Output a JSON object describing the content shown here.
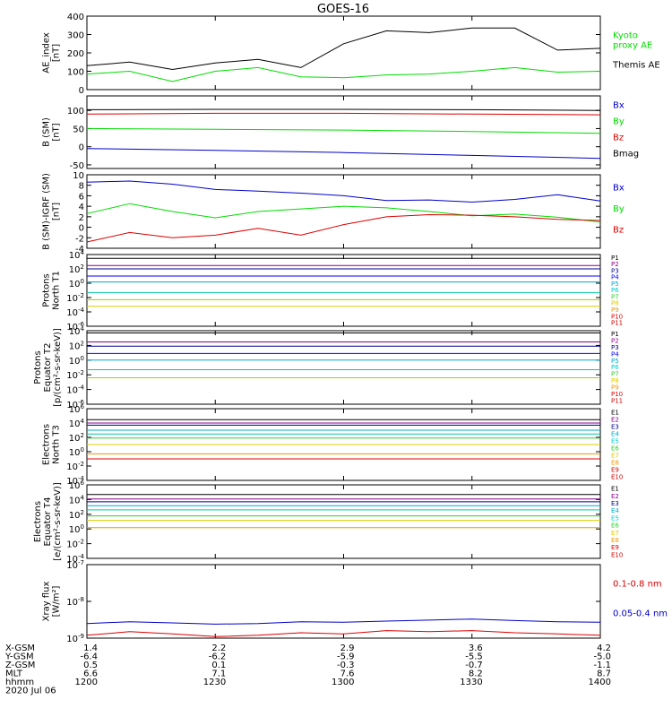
{
  "title": "GOES-16",
  "colors": {
    "black": "#000000",
    "blue": "#0000cc",
    "green": "#00dd00",
    "red": "#dd0000",
    "purple": "#880088",
    "navy": "#000088",
    "blue2": "#0000ff",
    "cyan": "#00aacc",
    "cyan2": "#00cccc",
    "teal": "#00cc99",
    "green2": "#33cc33",
    "lime": "#aacc00",
    "yellow": "#ddcc00",
    "orange": "#ee9900",
    "orange2": "#ee6600",
    "red2": "#cc0000"
  },
  "time_axis": {
    "start": "1200",
    "end": "1400",
    "row_labels": [
      "X-GSM",
      "Y-GSM",
      "Z-GSM",
      "MLT",
      "hhmm",
      "2020 Jul 06"
    ],
    "columns": [
      [
        "1.4",
        "-6.4",
        "0.5",
        "6.6",
        "1200"
      ],
      [
        "2.2",
        "-6.2",
        "0.1",
        "7.1",
        "1230"
      ],
      [
        "2.9",
        "-5.9",
        "-0.3",
        "7.6",
        "1300"
      ],
      [
        "3.6",
        "-5.5",
        "-0.7",
        "8.2",
        "1330"
      ],
      [
        "4.2",
        "-5.0",
        "-1.1",
        "8.7",
        "1400"
      ]
    ]
  },
  "chart_data": [
    {
      "type": "line",
      "ylabel": [
        "AE_index",
        "[nT]"
      ],
      "ylim": [
        0,
        400
      ],
      "yticks": [
        "0",
        "100",
        "200",
        "300",
        "400"
      ],
      "x": [
        "1200",
        "1210",
        "1220",
        "1230",
        "1240",
        "1250",
        "1300",
        "1310",
        "1320",
        "1330",
        "1340",
        "1350",
        "1400"
      ],
      "series": [
        {
          "name": "Themis AE",
          "color": "black",
          "values": [
            130,
            150,
            110,
            145,
            165,
            120,
            250,
            320,
            310,
            335,
            335,
            215,
            225
          ]
        },
        {
          "name": "Kyoto proxy AE",
          "color": "green",
          "values": [
            85,
            100,
            45,
            100,
            120,
            70,
            65,
            80,
            85,
            100,
            120,
            95,
            100
          ]
        }
      ],
      "legend": [
        {
          "text": "Kyoto\nproxy AE",
          "color": "green"
        },
        {
          "text": "Themis AE",
          "color": "black"
        }
      ]
    },
    {
      "type": "line",
      "ylabel": [
        "B (SM)",
        "[nT]"
      ],
      "ylim": [
        -60,
        140
      ],
      "yticks": [
        "-50",
        "0",
        "50",
        "100"
      ],
      "x": [
        "1200",
        "1230",
        "1300",
        "1330",
        "1400"
      ],
      "series": [
        {
          "name": "Bmag",
          "color": "black",
          "values": [
            102,
            103,
            103,
            102,
            100
          ]
        },
        {
          "name": "Bz",
          "color": "red",
          "values": [
            90,
            92,
            92,
            90,
            88
          ]
        },
        {
          "name": "By",
          "color": "green",
          "values": [
            50,
            48,
            46,
            42,
            37
          ]
        },
        {
          "name": "Bx",
          "color": "blue",
          "values": [
            -5,
            -10,
            -16,
            -24,
            -32
          ]
        }
      ],
      "legend": [
        {
          "text": "Bx",
          "color": "blue"
        },
        {
          "text": "By",
          "color": "green"
        },
        {
          "text": "Bz",
          "color": "red"
        },
        {
          "text": "Bmag",
          "color": "black"
        }
      ]
    },
    {
      "type": "line",
      "ylabel": [
        "B (SM)-IGRF (SM)",
        "[nT]"
      ],
      "ylim": [
        -4,
        10
      ],
      "yticks": [
        "-4",
        "-2",
        "0",
        "2",
        "4",
        "6",
        "8",
        "10"
      ],
      "x": [
        "1200",
        "1210",
        "1220",
        "1230",
        "1240",
        "1250",
        "1300",
        "1310",
        "1320",
        "1330",
        "1340",
        "1350",
        "1400"
      ],
      "series": [
        {
          "name": "Bx",
          "color": "blue",
          "values": [
            8.6,
            8.8,
            8.2,
            7.2,
            6.9,
            6.5,
            6.0,
            5.1,
            5.2,
            4.8,
            5.3,
            6.2,
            5.0
          ]
        },
        {
          "name": "By",
          "color": "green",
          "values": [
            2.6,
            4.5,
            3.0,
            1.8,
            3.0,
            3.5,
            4.0,
            3.7,
            3.0,
            2.2,
            2.5,
            1.9,
            1.0
          ]
        },
        {
          "name": "Bz",
          "color": "red",
          "values": [
            -2.8,
            -1.0,
            -2.0,
            -1.5,
            -0.2,
            -1.5,
            0.5,
            2.0,
            2.4,
            2.3,
            2.0,
            1.5,
            1.3
          ]
        }
      ],
      "legend": [
        {
          "text": "Bx",
          "color": "blue"
        },
        {
          "text": "By",
          "color": "green"
        },
        {
          "text": "Bz",
          "color": "red"
        }
      ]
    },
    {
      "type": "line",
      "log": true,
      "ylabel": [
        "Protons",
        "North T1"
      ],
      "ylim_exp": [
        -6,
        4
      ],
      "ytick_labels": [
        "10^-6",
        "10^-4",
        "10^-2",
        "10^0",
        "10^2",
        "10^4"
      ],
      "series": [
        {
          "name": "P1",
          "color": "black",
          "values": [
            3000,
            3000,
            3000
          ]
        },
        {
          "name": "P2",
          "color": "purple",
          "values": [
            300,
            300,
            300
          ]
        },
        {
          "name": "P3",
          "color": "navy",
          "values": [
            100,
            100,
            100
          ]
        },
        {
          "name": "P4",
          "color": "blue2",
          "values": [
            10,
            10,
            10
          ]
        },
        {
          "name": "P5",
          "color": "cyan",
          "values": [
            1.5,
            1.5,
            1.5
          ]
        },
        {
          "name": "P6",
          "color": "teal",
          "values": [
            0.05,
            0.05,
            0.05
          ]
        },
        {
          "name": "P7",
          "color": "lime",
          "values": [
            0.005,
            0.005,
            0.005
          ]
        },
        {
          "name": "P8",
          "color": "yellow",
          "values": [
            0.0006,
            0.0006,
            0.0006
          ]
        }
      ],
      "legend": [
        {
          "text": "P1",
          "color": "black"
        },
        {
          "text": "P2",
          "color": "purple"
        },
        {
          "text": "P3",
          "color": "navy"
        },
        {
          "text": "P4",
          "color": "blue2"
        },
        {
          "text": "P5",
          "color": "cyan"
        },
        {
          "text": "P6",
          "color": "cyan2"
        },
        {
          "text": "P7",
          "color": "green2"
        },
        {
          "text": "P8",
          "color": "yellow"
        },
        {
          "text": "P9",
          "color": "orange"
        },
        {
          "text": "P10",
          "color": "red"
        },
        {
          "text": "P11",
          "color": "red2"
        }
      ]
    },
    {
      "type": "line",
      "log": true,
      "ylabel": [
        "Protons",
        "Equator T2",
        "[p/(cm²-s-sr-keV)]"
      ],
      "ylim_exp": [
        -6,
        4
      ],
      "ytick_labels": [
        "10^-6",
        "10^-4",
        "10^-2",
        "10^0",
        "10^2",
        "10^4"
      ],
      "series": [
        {
          "name": "P1",
          "color": "black",
          "values": [
            5000,
            5000,
            5000
          ]
        },
        {
          "name": "P2",
          "color": "purple",
          "values": [
            300,
            300,
            300
          ]
        },
        {
          "name": "P3",
          "color": "navy",
          "values": [
            80,
            80,
            80
          ]
        },
        {
          "name": "P4",
          "color": "blue2",
          "values": [
            8,
            8,
            8
          ]
        },
        {
          "name": "P5",
          "color": "cyan",
          "values": [
            1,
            1,
            1
          ]
        },
        {
          "name": "P6",
          "color": "teal",
          "values": [
            0.05,
            0.05,
            0.05
          ]
        },
        {
          "name": "P7",
          "color": "lime",
          "values": [
            0.004,
            0.004,
            0.004
          ]
        }
      ],
      "legend": [
        {
          "text": "P1",
          "color": "black"
        },
        {
          "text": "P2",
          "color": "purple"
        },
        {
          "text": "P3",
          "color": "navy"
        },
        {
          "text": "P4",
          "color": "blue2"
        },
        {
          "text": "P5",
          "color": "cyan"
        },
        {
          "text": "P6",
          "color": "cyan2"
        },
        {
          "text": "P7",
          "color": "green2"
        },
        {
          "text": "P8",
          "color": "yellow"
        },
        {
          "text": "P9",
          "color": "orange"
        },
        {
          "text": "P10",
          "color": "red"
        },
        {
          "text": "P11",
          "color": "red2"
        }
      ]
    },
    {
      "type": "line",
      "log": true,
      "ylabel": [
        "Electrons",
        "North T3"
      ],
      "ylim_exp": [
        -4,
        6
      ],
      "ytick_labels": [
        "10^-4",
        "10^-2",
        "10^0",
        "10^2",
        "10^4",
        "10^6"
      ],
      "series": [
        {
          "name": "E1",
          "color": "black",
          "values": [
            30000,
            30000,
            30000
          ]
        },
        {
          "name": "E2",
          "color": "purple",
          "values": [
            10000,
            10000,
            10000
          ]
        },
        {
          "name": "E3",
          "color": "navy",
          "values": [
            5000,
            5000,
            5000
          ]
        },
        {
          "name": "E4",
          "color": "cyan",
          "values": [
            1000,
            1000,
            1000
          ]
        },
        {
          "name": "E5",
          "color": "teal",
          "values": [
            300,
            300,
            300
          ]
        },
        {
          "name": "E6",
          "color": "green2",
          "values": [
            80,
            80,
            80
          ]
        },
        {
          "name": "E7",
          "color": "yellow",
          "values": [
            10,
            10,
            10
          ]
        },
        {
          "name": "E8",
          "color": "orange",
          "values": [
            0.5,
            0.5,
            0.5
          ]
        },
        {
          "name": "E9",
          "color": "red",
          "values": [
            0.1,
            0.1,
            0.1
          ]
        }
      ],
      "legend": [
        {
          "text": "E1",
          "color": "black"
        },
        {
          "text": "E2",
          "color": "purple"
        },
        {
          "text": "E3",
          "color": "navy"
        },
        {
          "text": "E4",
          "color": "cyan"
        },
        {
          "text": "E5",
          "color": "cyan2"
        },
        {
          "text": "E6",
          "color": "green2"
        },
        {
          "text": "E7",
          "color": "yellow"
        },
        {
          "text": "E8",
          "color": "orange"
        },
        {
          "text": "E9",
          "color": "red"
        },
        {
          "text": "E10",
          "color": "red2"
        }
      ]
    },
    {
      "type": "line",
      "log": true,
      "ylabel": [
        "Electrons",
        "Equator T4",
        "[e/(cm²-s-sr-keV)]"
      ],
      "ylim_exp": [
        -4,
        6
      ],
      "ytick_labels": [
        "10^-4",
        "10^-2",
        "10^0",
        "10^2",
        "10^4",
        "10^6"
      ],
      "series": [
        {
          "name": "E1",
          "color": "black",
          "values": [
            50000,
            50000,
            50000
          ]
        },
        {
          "name": "E2",
          "color": "purple",
          "values": [
            12000,
            12000,
            12000
          ]
        },
        {
          "name": "E3",
          "color": "navy",
          "values": [
            5000,
            5000,
            5000
          ]
        },
        {
          "name": "E4",
          "color": "cyan",
          "values": [
            1500,
            1500,
            1500
          ]
        },
        {
          "name": "E5",
          "color": "teal",
          "values": [
            400,
            400,
            400
          ]
        },
        {
          "name": "E6",
          "color": "green2",
          "values": [
            60,
            60,
            60
          ]
        },
        {
          "name": "E7",
          "color": "yellow",
          "values": [
            15,
            15,
            15
          ]
        },
        {
          "name": "E8",
          "color": "orange",
          "values": [
            1.5,
            1.5,
            1.5
          ]
        }
      ],
      "legend": [
        {
          "text": "E1",
          "color": "black"
        },
        {
          "text": "E2",
          "color": "purple"
        },
        {
          "text": "E3",
          "color": "navy"
        },
        {
          "text": "E4",
          "color": "cyan"
        },
        {
          "text": "E5",
          "color": "cyan2"
        },
        {
          "text": "E6",
          "color": "green2"
        },
        {
          "text": "E7",
          "color": "yellow"
        },
        {
          "text": "E8",
          "color": "orange"
        },
        {
          "text": "E9",
          "color": "red"
        },
        {
          "text": "E10",
          "color": "red2"
        }
      ]
    },
    {
      "type": "line",
      "log": true,
      "ylabel": [
        "Xray flux",
        "[W/m²]"
      ],
      "ylim_exp": [
        -9,
        -7
      ],
      "ytick_labels": [
        "10^-9",
        "10^-8",
        "10^-7"
      ],
      "x": [
        "1200",
        "1210",
        "1220",
        "1230",
        "1240",
        "1250",
        "1300",
        "1310",
        "1320",
        "1330",
        "1340",
        "1350",
        "1400"
      ],
      "series": [
        {
          "name": "0.05-0.4 nm",
          "color": "blue",
          "values": [
            2.5e-09,
            2.8e-09,
            2.6e-09,
            2.4e-09,
            2.5e-09,
            2.8e-09,
            2.7e-09,
            2.9e-09,
            3.1e-09,
            3.3e-09,
            3e-09,
            2.8e-09,
            2.7e-09
          ]
        },
        {
          "name": "0.1-0.8 nm",
          "color": "red",
          "values": [
            1.2e-09,
            1.5e-09,
            1.3e-09,
            1.1e-09,
            1.2e-09,
            1.4e-09,
            1.3e-09,
            1.6e-09,
            1.5e-09,
            1.6e-09,
            1.4e-09,
            1.3e-09,
            1.2e-09
          ]
        }
      ],
      "legend": [
        {
          "text": "0.1-0.8 nm",
          "color": "red"
        },
        {
          "text": "0.05-0.4 nm",
          "color": "blue"
        }
      ]
    }
  ]
}
